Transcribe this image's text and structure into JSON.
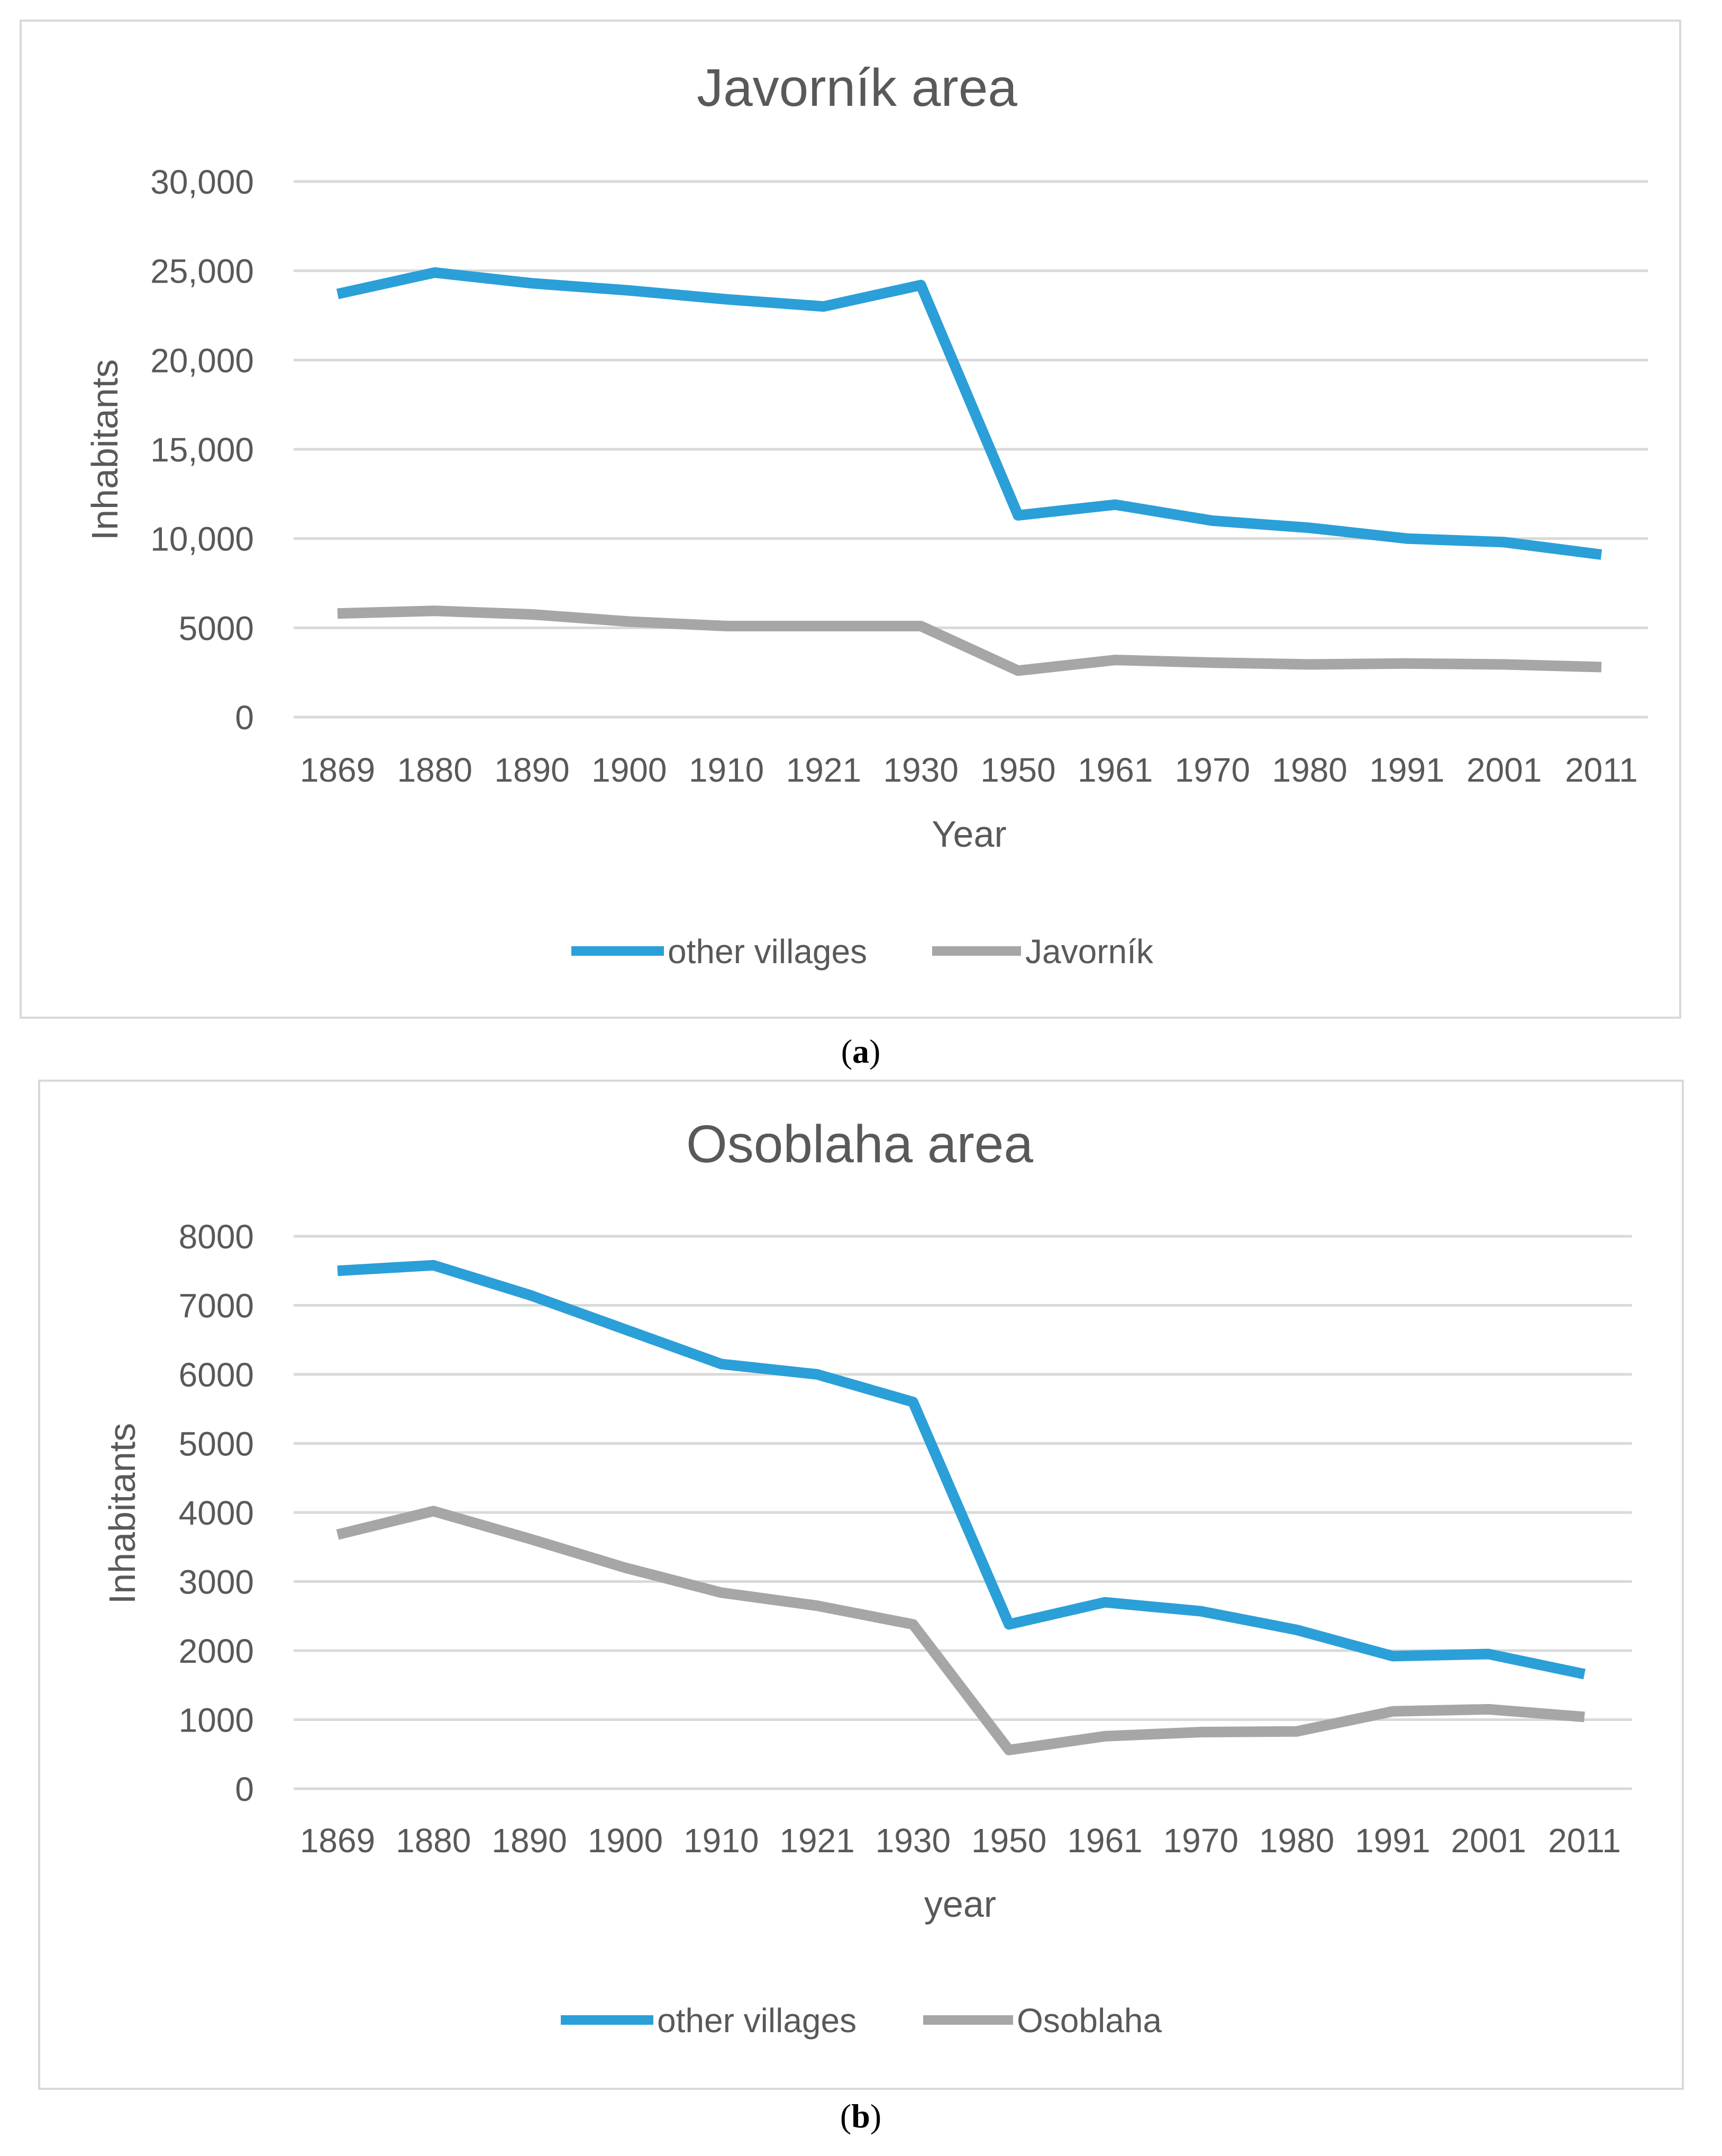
{
  "chart_data": [
    {
      "type": "line",
      "panel_label": "a",
      "title": "Javorník area",
      "xlabel": "Year",
      "ylabel": "Inhabitants",
      "categories": [
        "1869",
        "1880",
        "1890",
        "1900",
        "1910",
        "1921",
        "1930",
        "1950",
        "1961",
        "1970",
        "1980",
        "1991",
        "2001",
        "2011"
      ],
      "ylim": [
        0,
        30000
      ],
      "yticks": [
        0,
        5000,
        10000,
        15000,
        20000,
        25000,
        30000
      ],
      "ytick_labels": [
        "0",
        "5000",
        "10,000",
        "15,000",
        "20,000",
        "25,000",
        "30,000"
      ],
      "grid": true,
      "legend_position": "bottom",
      "series": [
        {
          "name": "other villages",
          "color": "#2b9fd8",
          "values": [
            23700,
            24900,
            24300,
            23900,
            23400,
            23000,
            24200,
            11300,
            11900,
            11000,
            10600,
            10000,
            9800,
            9100
          ]
        },
        {
          "name": "Javorník",
          "color": "#a6a6a6",
          "values": [
            5800,
            5950,
            5750,
            5350,
            5100,
            5100,
            5100,
            2600,
            3200,
            3050,
            2950,
            3000,
            2950,
            2800
          ]
        }
      ]
    },
    {
      "type": "line",
      "panel_label": "b",
      "title": "Osoblaha area",
      "xlabel": "year",
      "ylabel": "Inhabitants",
      "categories": [
        "1869",
        "1880",
        "1890",
        "1900",
        "1910",
        "1921",
        "1930",
        "1950",
        "1961",
        "1970",
        "1980",
        "1991",
        "2001",
        "2011"
      ],
      "ylim": [
        0,
        8000
      ],
      "yticks": [
        0,
        1000,
        2000,
        3000,
        4000,
        5000,
        6000,
        7000,
        8000
      ],
      "ytick_labels": [
        "0",
        "1000",
        "2000",
        "3000",
        "4000",
        "5000",
        "6000",
        "7000",
        "8000"
      ],
      "grid": true,
      "legend_position": "bottom",
      "series": [
        {
          "name": "other villages",
          "color": "#2b9fd8",
          "values": [
            7500,
            7580,
            7150,
            6650,
            6150,
            6000,
            5600,
            2380,
            2700,
            2570,
            2300,
            1920,
            1950,
            1660
          ]
        },
        {
          "name": "Osoblaha",
          "color": "#a6a6a6",
          "values": [
            3680,
            4020,
            3620,
            3200,
            2840,
            2650,
            2380,
            560,
            760,
            820,
            830,
            1120,
            1150,
            1040
          ]
        }
      ]
    }
  ]
}
